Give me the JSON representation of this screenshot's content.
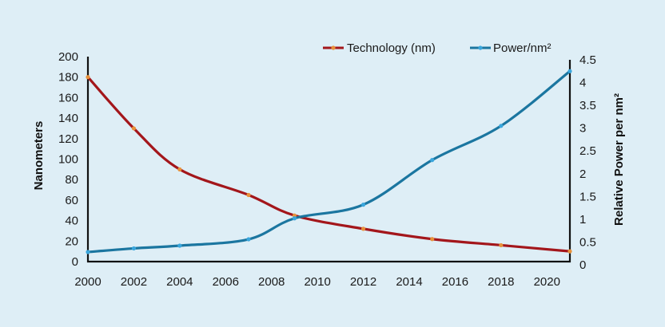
{
  "chart_data": {
    "type": "line",
    "title": "",
    "xlabel": "",
    "ylabel": "Nanometers",
    "y2label": "Relative Power per nm²",
    "xlim": [
      2000,
      2021
    ],
    "ylim": [
      0,
      200
    ],
    "y2lim": [
      0,
      4.5
    ],
    "xticks": [
      2000,
      2002,
      2004,
      2006,
      2008,
      2010,
      2012,
      2014,
      2016,
      2018,
      2020
    ],
    "yticks": [
      0,
      20,
      40,
      60,
      80,
      100,
      120,
      140,
      160,
      180,
      200
    ],
    "y2ticks": [
      "0",
      "0.5",
      "1",
      "1.5",
      "2",
      "2.5",
      "3",
      "3.5",
      "4",
      "4.5"
    ],
    "legend_position": "top-right",
    "grid": false,
    "series": [
      {
        "name": "Technology (nm)",
        "axis": "left",
        "color": "#a3161b",
        "marker_color": "#e8913a",
        "x": [
          2000,
          2002,
          2004,
          2007,
          2009,
          2012,
          2015,
          2018,
          2021
        ],
        "y": [
          180,
          130,
          90,
          65,
          45,
          32,
          22,
          16,
          10
        ]
      },
      {
        "name": "Power/nm²",
        "axis": "right",
        "color": "#1b76a0",
        "marker_color": "#3aa6dc",
        "x": [
          2000,
          2002,
          2004,
          2007,
          2009,
          2012,
          2015,
          2018,
          2021
        ],
        "y": [
          0.28,
          0.36,
          0.42,
          0.56,
          1.02,
          1.32,
          2.3,
          3.05,
          4.25
        ]
      }
    ]
  }
}
